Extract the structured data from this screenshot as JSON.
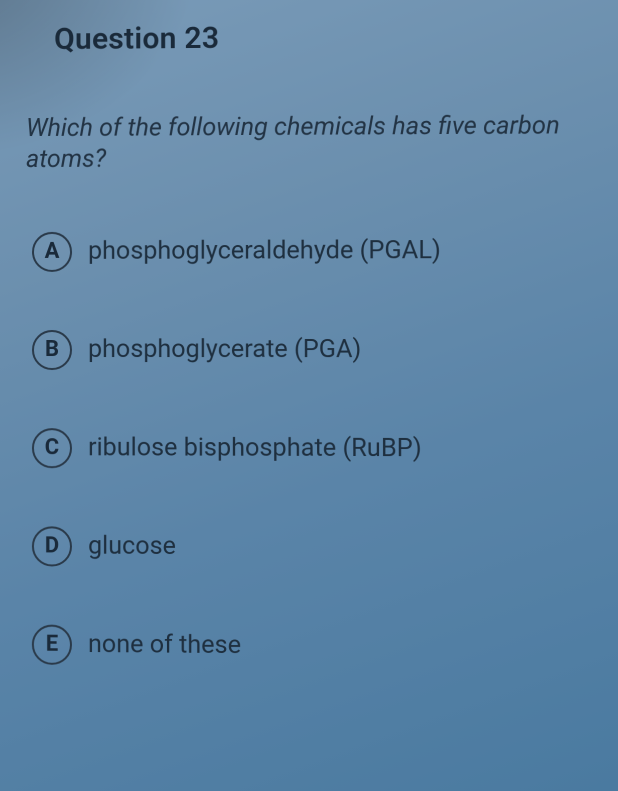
{
  "question": {
    "header": "Question 23",
    "prompt": "Which of the following chemicals has five carbon atoms?",
    "options": [
      {
        "letter": "A",
        "text": "phosphoglyceraldehyde (PGAL)"
      },
      {
        "letter": "B",
        "text": "phosphoglycerate (PGA)"
      },
      {
        "letter": "C",
        "text": "ribulose bisphosphate (RuBP)"
      },
      {
        "letter": "D",
        "text": "glucose"
      },
      {
        "letter": "E",
        "text": "none of these"
      }
    ]
  }
}
